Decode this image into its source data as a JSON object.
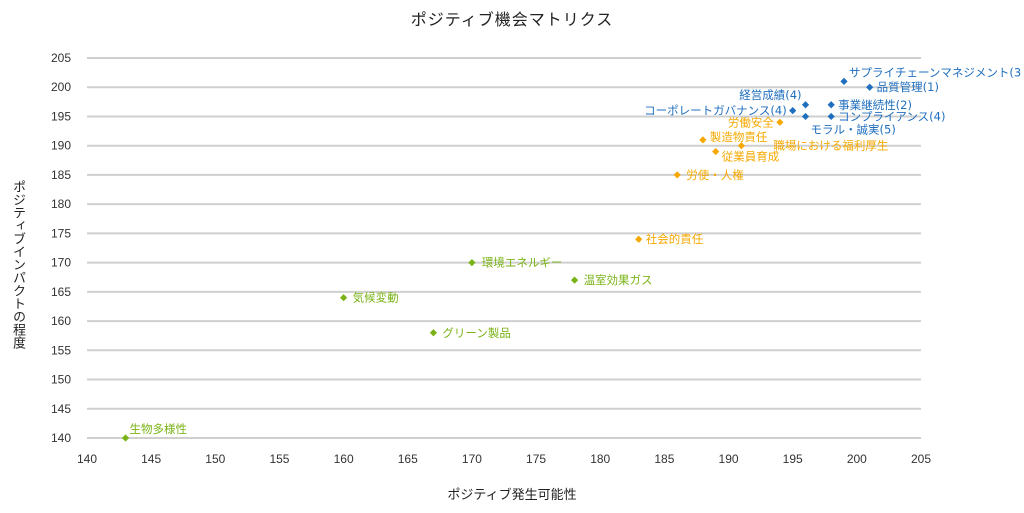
{
  "chart_data": {
    "type": "scatter",
    "title": "ポジティブ機会マトリクス",
    "xlabel": "ポジティブ発生可能性",
    "ylabel": "ポジティブインパクトの程度",
    "xlim": [
      140,
      205
    ],
    "ylim": [
      140,
      205
    ],
    "x_ticks": [
      140,
      145,
      150,
      155,
      160,
      165,
      170,
      175,
      180,
      185,
      190,
      195,
      200,
      205
    ],
    "y_ticks": [
      140,
      145,
      150,
      155,
      160,
      165,
      170,
      175,
      180,
      185,
      190,
      195,
      200,
      205
    ],
    "grid": "horizontal",
    "colors": {
      "blue": "#1f6fbf",
      "orange": "#f5a800",
      "green": "#7ab317"
    },
    "points": [
      {
        "label": "サプライチェーンマネジメント(3",
        "x": 199,
        "y": 201,
        "group": "blue"
      },
      {
        "label": "品質管理(1)",
        "x": 201,
        "y": 200,
        "group": "blue"
      },
      {
        "label": "経営成績(4)",
        "x": 196,
        "y": 197,
        "group": "blue"
      },
      {
        "label": "事業継続性(2)",
        "x": 198,
        "y": 197,
        "group": "blue"
      },
      {
        "label": "コーポレートガバナンス(4)",
        "x": 195,
        "y": 196,
        "group": "blue"
      },
      {
        "label": "コンプライアンス(4)",
        "x": 198,
        "y": 195,
        "group": "blue"
      },
      {
        "label": "モラル・誠実(5)",
        "x": 196,
        "y": 195,
        "group": "blue"
      },
      {
        "label": "労働安全",
        "x": 194,
        "y": 194,
        "group": "orange"
      },
      {
        "label": "製造物責任",
        "x": 188,
        "y": 191,
        "group": "orange"
      },
      {
        "label": "職場における福利厚生",
        "x": 191,
        "y": 190,
        "group": "orange"
      },
      {
        "label": "従業員育成",
        "x": 189,
        "y": 189,
        "group": "orange"
      },
      {
        "label": "労使・人権",
        "x": 186,
        "y": 185,
        "group": "orange"
      },
      {
        "label": "社会的責任",
        "x": 183,
        "y": 174,
        "group": "orange"
      },
      {
        "label": "環境エネルギー",
        "x": 170,
        "y": 170,
        "group": "green"
      },
      {
        "label": "温室効果ガス",
        "x": 178,
        "y": 167,
        "group": "green"
      },
      {
        "label": "気候変動",
        "x": 160,
        "y": 164,
        "group": "green"
      },
      {
        "label": "グリーン製品",
        "x": 167,
        "y": 158,
        "group": "green"
      },
      {
        "label": "生物多様性",
        "x": 143,
        "y": 140,
        "group": "green"
      }
    ]
  }
}
